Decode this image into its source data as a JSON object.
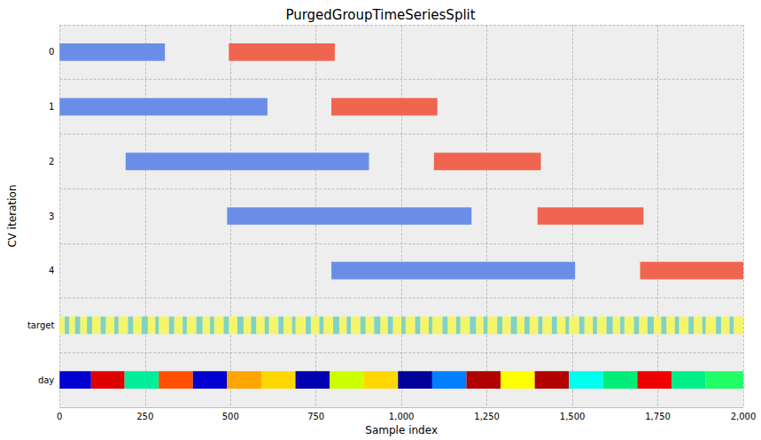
{
  "chart_data": {
    "type": "range_bar",
    "title": "PurgedGroupTimeSeriesSplit",
    "x_label": "Sample index",
    "y_label": "CV iteration",
    "categories": [
      "0",
      "1",
      "2",
      "3",
      "4",
      "target",
      "day"
    ],
    "xlim": [
      0,
      2000
    ],
    "xticks": [
      0,
      250,
      500,
      750,
      1000,
      1250,
      1500,
      1750,
      2000
    ],
    "grid": true,
    "series": [
      {
        "category": "0",
        "color": "#6a8ee8",
        "segments": [
          [
            0,
            308
          ]
        ]
      },
      {
        "category": "0",
        "color": "#f06550",
        "segments": [
          [
            495,
            805
          ]
        ]
      },
      {
        "category": "1",
        "color": "#6a8ee8",
        "segments": [
          [
            0,
            608
          ]
        ]
      },
      {
        "category": "1",
        "color": "#f06550",
        "segments": [
          [
            795,
            1105
          ]
        ]
      },
      {
        "category": "2",
        "color": "#6a8ee8",
        "segments": [
          [
            193,
            905
          ]
        ]
      },
      {
        "category": "2",
        "color": "#f06550",
        "segments": [
          [
            1095,
            1408
          ]
        ]
      },
      {
        "category": "3",
        "color": "#6a8ee8",
        "segments": [
          [
            490,
            1205
          ]
        ]
      },
      {
        "category": "3",
        "color": "#f06550",
        "segments": [
          [
            1398,
            1708
          ]
        ]
      },
      {
        "category": "4",
        "color": "#6a8ee8",
        "segments": [
          [
            795,
            1508
          ]
        ]
      },
      {
        "category": "4",
        "color": "#f06550",
        "segments": [
          [
            1698,
            2000
          ]
        ]
      },
      {
        "category": "target",
        "color": "#f5f56a",
        "segments": [
          [
            0,
            15
          ],
          [
            28,
            45
          ],
          [
            60,
            80
          ],
          [
            95,
            120
          ],
          [
            135,
            160
          ],
          [
            172,
            200
          ],
          [
            215,
            240
          ],
          [
            258,
            280
          ],
          [
            290,
            320
          ],
          [
            335,
            360
          ],
          [
            372,
            400
          ],
          [
            418,
            440
          ],
          [
            452,
            480
          ],
          [
            495,
            520
          ],
          [
            538,
            560
          ],
          [
            575,
            600
          ],
          [
            612,
            640
          ],
          [
            655,
            680
          ],
          [
            690,
            720
          ],
          [
            735,
            760
          ],
          [
            772,
            800
          ],
          [
            818,
            840
          ],
          [
            852,
            880
          ],
          [
            895,
            920
          ],
          [
            938,
            960
          ],
          [
            975,
            1000
          ],
          [
            1012,
            1040
          ],
          [
            1055,
            1080
          ],
          [
            1090,
            1120
          ],
          [
            1135,
            1160
          ],
          [
            1172,
            1200
          ],
          [
            1218,
            1240
          ],
          [
            1252,
            1280
          ],
          [
            1295,
            1320
          ],
          [
            1338,
            1360
          ],
          [
            1375,
            1400
          ],
          [
            1412,
            1440
          ],
          [
            1455,
            1480
          ],
          [
            1490,
            1520
          ],
          [
            1535,
            1560
          ],
          [
            1572,
            1600
          ],
          [
            1618,
            1640
          ],
          [
            1652,
            1680
          ],
          [
            1695,
            1720
          ],
          [
            1738,
            1760
          ],
          [
            1775,
            1800
          ],
          [
            1812,
            1840
          ],
          [
            1855,
            1880
          ],
          [
            1890,
            1920
          ],
          [
            1935,
            1960
          ],
          [
            1972,
            2000
          ]
        ]
      },
      {
        "category": "target",
        "color": "#7fd3c4",
        "segments": [
          [
            15,
            28
          ],
          [
            45,
            60
          ],
          [
            80,
            95
          ],
          [
            120,
            135
          ],
          [
            160,
            172
          ],
          [
            200,
            215
          ],
          [
            240,
            258
          ],
          [
            280,
            290
          ],
          [
            320,
            335
          ],
          [
            360,
            372
          ],
          [
            400,
            418
          ],
          [
            440,
            452
          ],
          [
            480,
            495
          ],
          [
            520,
            538
          ],
          [
            560,
            575
          ],
          [
            600,
            612
          ],
          [
            640,
            655
          ],
          [
            680,
            690
          ],
          [
            720,
            735
          ],
          [
            760,
            772
          ],
          [
            800,
            818
          ],
          [
            840,
            852
          ],
          [
            880,
            895
          ],
          [
            920,
            938
          ],
          [
            960,
            975
          ],
          [
            1000,
            1012
          ],
          [
            1040,
            1055
          ],
          [
            1080,
            1090
          ],
          [
            1120,
            1135
          ],
          [
            1160,
            1172
          ],
          [
            1200,
            1218
          ],
          [
            1240,
            1252
          ],
          [
            1280,
            1295
          ],
          [
            1320,
            1338
          ],
          [
            1360,
            1375
          ],
          [
            1400,
            1412
          ],
          [
            1440,
            1455
          ],
          [
            1480,
            1490
          ],
          [
            1520,
            1535
          ],
          [
            1560,
            1572
          ],
          [
            1600,
            1618
          ],
          [
            1640,
            1652
          ],
          [
            1680,
            1695
          ],
          [
            1720,
            1738
          ],
          [
            1760,
            1775
          ],
          [
            1800,
            1812
          ],
          [
            1840,
            1855
          ],
          [
            1880,
            1890
          ],
          [
            1920,
            1935
          ],
          [
            1960,
            1972
          ]
        ]
      },
      {
        "category": "day",
        "segments": [
          [
            0,
            92
          ],
          [
            92,
            190
          ],
          [
            190,
            290
          ],
          [
            290,
            390
          ],
          [
            390,
            490
          ],
          [
            490,
            590
          ],
          [
            590,
            690
          ],
          [
            690,
            790
          ],
          [
            790,
            890
          ],
          [
            890,
            990
          ],
          [
            990,
            1090
          ],
          [
            1090,
            1190
          ],
          [
            1190,
            1290
          ],
          [
            1290,
            1390
          ],
          [
            1390,
            1490
          ],
          [
            1490,
            1590
          ],
          [
            1590,
            1690
          ],
          [
            1690,
            1790
          ],
          [
            1790,
            1890
          ],
          [
            1890,
            2000
          ]
        ],
        "colors": [
          "#0000d0",
          "#e00000",
          "#00ee99",
          "#ff5000",
          "#0000d0",
          "#ffa500",
          "#ffd700",
          "#0000b0",
          "#ccff00",
          "#ffd700",
          "#00009a",
          "#0080ff",
          "#b00000",
          "#ffff00",
          "#b30000",
          "#00ffee",
          "#00ee77",
          "#ee0000",
          "#00ee88",
          "#22ff66"
        ]
      }
    ]
  }
}
